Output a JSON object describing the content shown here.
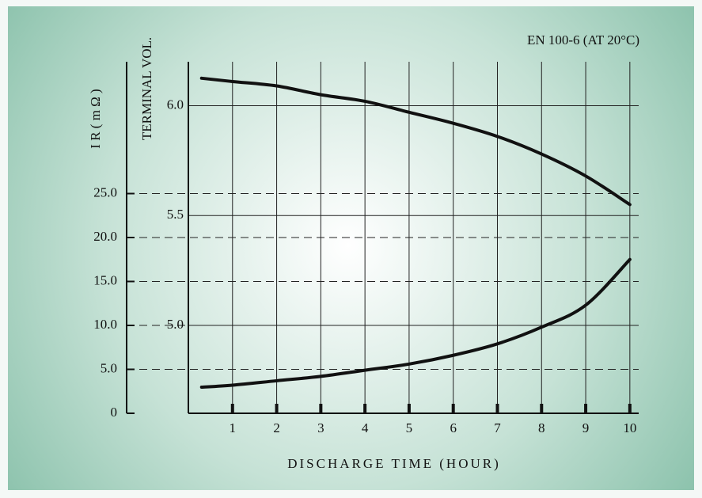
{
  "chart_data": {
    "type": "line",
    "annotation": "EN 100-6 (AT 20°C)",
    "x_label": "DISCHARGE TIME (HOUR)",
    "y_label": "I R ( m Ω )",
    "y2_label": "TERMINAL VOL.",
    "x": [
      0.3,
      1,
      2,
      3,
      4,
      5,
      6,
      7,
      8,
      9,
      10
    ],
    "series": [
      {
        "color": "#111111",
        "axis": "y2",
        "values": [
          6.125,
          6.11,
          6.09,
          6.05,
          6.02,
          5.97,
          5.92,
          5.86,
          5.78,
          5.68,
          5.55
        ]
      },
      {
        "color": "#111111",
        "values": [
          2.97,
          3.2,
          3.7,
          4.2,
          4.9,
          5.6,
          6.6,
          7.9,
          9.8,
          12.3,
          17.5
        ]
      }
    ],
    "xlim": [
      0,
      10.2
    ],
    "xticks": [
      1,
      2,
      3,
      4,
      5,
      6,
      7,
      8,
      9,
      10
    ],
    "ylim": [
      0,
      40
    ],
    "yticks": [
      0,
      {
        "value": 5,
        "label": "5.0"
      },
      {
        "value": 10,
        "label": "10.0"
      },
      {
        "value": 15,
        "label": "15.0"
      },
      {
        "value": 20,
        "label": "20.0"
      },
      {
        "value": 25,
        "label": "25.0"
      }
    ],
    "y2lim": [
      4.6,
      6.2
    ],
    "y2ticks": [
      {
        "value": 5,
        "label": "5.0"
      },
      {
        "value": 5.5,
        "label": "5.5"
      },
      {
        "value": 6,
        "label": "6.0"
      }
    ],
    "grid": true
  }
}
